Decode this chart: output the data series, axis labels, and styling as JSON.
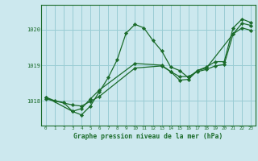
{
  "title": "Graphe pression niveau de la mer (hPa)",
  "bg_color": "#cce8ee",
  "grid_color": "#99ccd4",
  "line_color": "#1a6b2a",
  "xlim": [
    -0.5,
    23.5
  ],
  "ylim": [
    1017.3,
    1020.7
  ],
  "yticks": [
    1018,
    1019,
    1020
  ],
  "xticks": [
    0,
    1,
    2,
    3,
    4,
    5,
    6,
    7,
    8,
    9,
    10,
    11,
    12,
    13,
    14,
    15,
    16,
    17,
    18,
    19,
    20,
    21,
    22,
    23
  ],
  "series": [
    {
      "x": [
        0,
        1,
        2,
        3,
        4,
        5,
        6,
        7,
        8,
        9,
        10,
        11,
        12,
        13,
        14,
        15,
        16,
        17,
        18,
        19,
        20,
        21,
        22,
        23
      ],
      "y": [
        1018.1,
        1018.0,
        1017.95,
        1017.7,
        1017.6,
        1017.85,
        1018.25,
        1018.65,
        1019.15,
        1019.9,
        1020.15,
        1020.05,
        1019.7,
        1019.4,
        1018.95,
        1018.85,
        1018.65,
        1018.85,
        1018.95,
        1019.1,
        1019.1,
        1020.05,
        1020.3,
        1020.2
      ]
    },
    {
      "x": [
        0,
        3,
        4,
        5,
        6,
        10,
        13,
        14,
        15,
        16,
        17,
        18,
        21,
        22,
        23
      ],
      "y": [
        1018.1,
        1017.7,
        1017.78,
        1018.05,
        1018.3,
        1019.05,
        1019.0,
        1018.82,
        1018.58,
        1018.6,
        1018.85,
        1018.92,
        1019.88,
        1020.18,
        1020.12
      ]
    },
    {
      "x": [
        0,
        3,
        4,
        5,
        6,
        10,
        13,
        14,
        15,
        16,
        17,
        18,
        19,
        20,
        21,
        22,
        23
      ],
      "y": [
        1018.05,
        1017.88,
        1017.85,
        1017.98,
        1018.12,
        1018.92,
        1018.98,
        1018.82,
        1018.68,
        1018.68,
        1018.82,
        1018.88,
        1018.98,
        1019.02,
        1019.88,
        1020.05,
        1019.98
      ]
    }
  ]
}
